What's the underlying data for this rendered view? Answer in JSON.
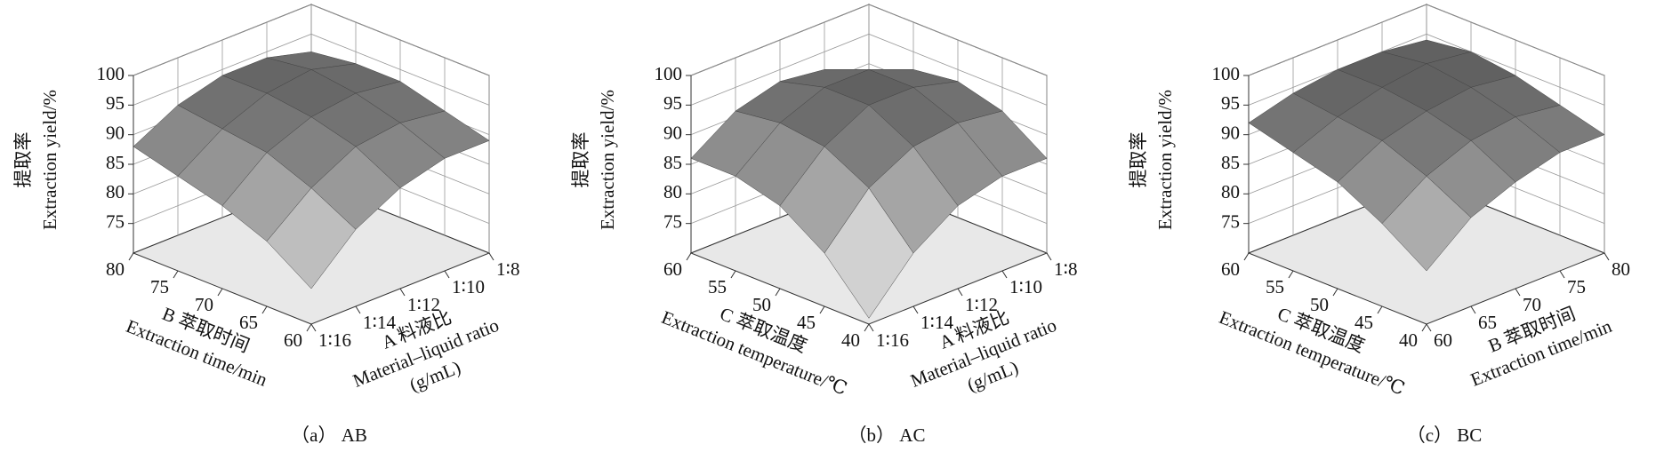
{
  "chart_data": [
    {
      "type": "surface3d",
      "caption": "（a） AB",
      "zlabel": [
        "提取率",
        "Extraction yield/%"
      ],
      "xlabel": [
        "B 萃取时间",
        "Extraction time/min"
      ],
      "xlim": [
        60,
        80
      ],
      "xticks": [
        60,
        65,
        70,
        75,
        80
      ],
      "ylabel": [
        "A 料液比",
        "Material–liquid ratio",
        "(g/mL)"
      ],
      "ycategories": [
        "1∶16",
        "1∶14",
        "1∶12",
        "1∶10",
        "1∶8"
      ],
      "zlim": [
        70,
        100
      ],
      "zticks": [
        75,
        80,
        85,
        90,
        95,
        100
      ],
      "z": [
        [
          76,
          83,
          87,
          89,
          89
        ],
        [
          81,
          87,
          91,
          92,
          91
        ],
        [
          84,
          90,
          93,
          94,
          93
        ],
        [
          86,
          91,
          94,
          95,
          93
        ],
        [
          88,
          92,
          94,
          94,
          92
        ]
      ]
    },
    {
      "type": "surface3d",
      "caption": "（b） AC",
      "zlabel": [
        "提取率",
        "Extraction yield/%"
      ],
      "xlabel": [
        "C 萃取温度",
        "Extraction temperature/℃"
      ],
      "xlim": [
        40,
        60
      ],
      "xticks": [
        40,
        45,
        50,
        55,
        60
      ],
      "ylabel": [
        "A 料液比",
        "Material–liquid ratio",
        "(g/mL)"
      ],
      "ycategories": [
        "1∶16",
        "1∶14",
        "1∶12",
        "1∶10",
        "1∶8"
      ],
      "zlim": [
        70,
        100
      ],
      "zticks": [
        75,
        80,
        85,
        90,
        95,
        100
      ],
      "z": [
        [
          71,
          79,
          84,
          86,
          86
        ],
        [
          79,
          87,
          91,
          92,
          91
        ],
        [
          84,
          91,
          95,
          95,
          93
        ],
        [
          86,
          92,
          95,
          95,
          92
        ],
        [
          86,
          91,
          93,
          92,
          89
        ]
      ]
    },
    {
      "type": "surface3d",
      "caption": "（c） BC",
      "zlabel": [
        "提取率",
        "Extraction yield/%"
      ],
      "xlabel": [
        "C 萃取温度",
        "Extraction temperature/℃"
      ],
      "xlim": [
        40,
        60
      ],
      "xticks": [
        40,
        45,
        50,
        55,
        60
      ],
      "ylabel": [
        "B 萃取时间",
        "Extraction time/min"
      ],
      "ylim": [
        60,
        80
      ],
      "yticks": [
        60,
        65,
        70,
        75,
        80
      ],
      "zlim": [
        70,
        100
      ],
      "zticks": [
        75,
        80,
        85,
        90,
        95,
        100
      ],
      "z": [
        [
          79,
          85,
          88,
          90,
          90
        ],
        [
          84,
          89,
          92,
          93,
          92
        ],
        [
          88,
          92,
          94,
          95,
          94
        ],
        [
          90,
          93,
          95,
          96,
          95
        ],
        [
          92,
          94,
          95,
          95,
          94
        ]
      ]
    }
  ]
}
